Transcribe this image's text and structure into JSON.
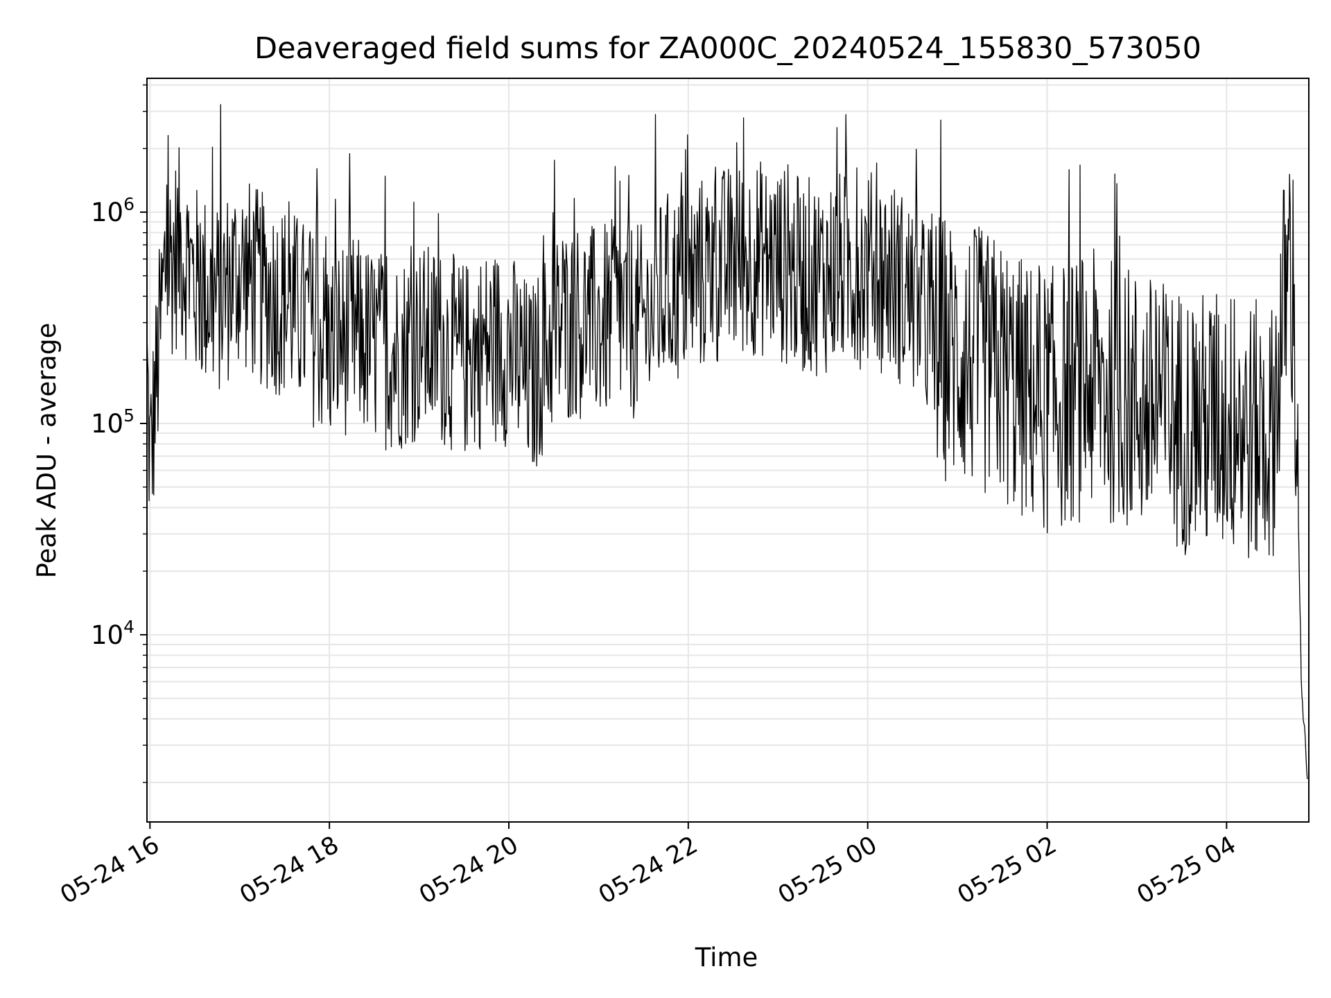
{
  "chart_data": {
    "type": "line",
    "title": "Deaveraged field sums for ZA000C_20240524_155830_573050",
    "xlabel": "Time",
    "ylabel": "Peak ADU - average",
    "x_scale": "time",
    "y_scale": "log",
    "xlim": [
      "2024-05-24 15:58",
      "2024-05-25 04:55"
    ],
    "ylim": [
      1300,
      4300000
    ],
    "grid": true,
    "legend": "none",
    "line_color": "#000000",
    "x_ticks": [
      "05-24 16",
      "05-24 18",
      "05-24 20",
      "05-24 22",
      "05-25 00",
      "05-25 02",
      "05-25 04"
    ],
    "y_ticks": [
      {
        "value": 10000,
        "base": "10",
        "exp": "4"
      },
      {
        "value": 100000,
        "base": "10",
        "exp": "5"
      },
      {
        "value": 1000000,
        "base": "10",
        "exp": "6"
      }
    ],
    "series": [
      {
        "x": [
          "2024-05-24 15:58",
          "2024-05-24 16:00",
          "2024-05-24 16:10",
          "2024-05-24 16:20",
          "2024-05-24 16:30",
          "2024-05-24 16:45",
          "2024-05-24 17:00",
          "2024-05-24 17:15",
          "2024-05-24 17:30",
          "2024-05-24 17:45",
          "2024-05-24 18:00",
          "2024-05-24 18:15",
          "2024-05-24 18:30",
          "2024-05-24 18:45",
          "2024-05-24 19:00",
          "2024-05-24 19:15",
          "2024-05-24 19:30",
          "2024-05-24 19:45",
          "2024-05-24 20:00",
          "2024-05-24 20:15",
          "2024-05-24 20:30",
          "2024-05-24 20:45",
          "2024-05-24 21:00",
          "2024-05-24 21:15",
          "2024-05-24 21:30",
          "2024-05-24 21:45",
          "2024-05-24 22:00",
          "2024-05-24 22:15",
          "2024-05-24 22:30",
          "2024-05-24 22:45",
          "2024-05-24 23:00",
          "2024-05-24 23:15",
          "2024-05-24 23:30",
          "2024-05-24 23:45",
          "2024-05-25 00:00",
          "2024-05-25 00:15",
          "2024-05-25 00:30",
          "2024-05-25 00:45",
          "2024-05-25 01:00",
          "2024-05-25 01:15",
          "2024-05-25 01:30",
          "2024-05-25 01:45",
          "2024-05-25 02:00",
          "2024-05-25 02:15",
          "2024-05-25 02:30",
          "2024-05-25 02:45",
          "2024-05-25 03:00",
          "2024-05-25 03:15",
          "2024-05-25 03:30",
          "2024-05-25 03:45",
          "2024-05-25 04:00",
          "2024-05-25 04:15",
          "2024-05-25 04:30",
          "2024-05-25 04:40",
          "2024-05-25 04:45",
          "2024-05-25 04:50",
          "2024-05-25 04:54"
        ],
        "y": [
          250000,
          80000,
          700000,
          900000,
          600000,
          500000,
          700000,
          550000,
          500000,
          400000,
          300000,
          350000,
          300000,
          280000,
          320000,
          300000,
          260000,
          300000,
          300000,
          200000,
          350000,
          400000,
          380000,
          420000,
          380000,
          550000,
          600000,
          700000,
          750000,
          800000,
          750000,
          650000,
          650000,
          700000,
          700000,
          650000,
          500000,
          350000,
          300000,
          280000,
          250000,
          200000,
          180000,
          200000,
          220000,
          200000,
          180000,
          160000,
          150000,
          140000,
          150000,
          130000,
          120000,
          650000,
          600000,
          6000,
          2000
        ]
      }
    ]
  }
}
